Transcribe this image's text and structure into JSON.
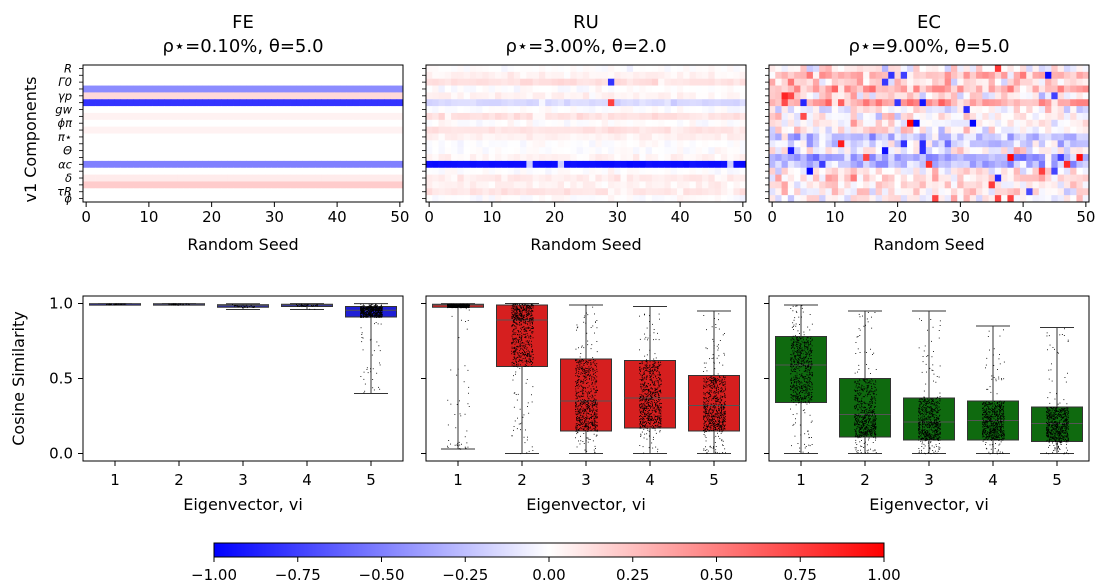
{
  "colors": {
    "fe_box": "#1f1fd6",
    "ru_box": "#d61f1f",
    "ec_box": "#0f6a0f",
    "cmap_neg": "#0000ff",
    "cmap_mid": "#ffffff",
    "cmap_pos": "#ff0000"
  },
  "chart_data": [
    {
      "type": "heatmap",
      "panel": "FE heatmap",
      "title": "FE",
      "subtitle": "ρ⋆=0.10%, θ=5.0",
      "xlabel": "Random Seed",
      "ylabel": "v1 Components",
      "x_ticks": [
        "0",
        "10",
        "20",
        "30",
        "40",
        "50"
      ],
      "xlim": [
        0,
        50
      ],
      "y_tick_labels": [
        "R",
        "Γ0",
        "γp",
        "gw",
        "ϕπ",
        "π⋆",
        "Θ",
        "αc",
        "δ",
        "τR",
        "ϕ"
      ],
      "n_rows": 20,
      "row_values": [
        0,
        0,
        0,
        -0.45,
        0.15,
        -0.8,
        0,
        0.05,
        0,
        0.05,
        0,
        0,
        0,
        0,
        -0.5,
        0,
        0.08,
        0.2,
        0,
        0
      ]
    },
    {
      "type": "heatmap",
      "panel": "RU heatmap",
      "title": "RU",
      "subtitle": "ρ⋆=3.00%, θ=2.0",
      "xlabel": "Random Seed",
      "x_ticks": [
        "0",
        "10",
        "20",
        "30",
        "40",
        "50"
      ],
      "xlim": [
        0,
        50
      ],
      "n_rows": 20,
      "row_values": [
        0,
        0.05,
        0.12,
        0,
        0.05,
        -0.15,
        0,
        0.12,
        0,
        0.1,
        0.05,
        0,
        0,
        0.04,
        -0.95,
        0,
        0.08,
        0.05,
        0.1,
        0
      ]
    },
    {
      "type": "heatmap",
      "panel": "EC heatmap",
      "title": "EC",
      "subtitle": "ρ⋆=9.00%, θ=5.0",
      "xlabel": "Random Seed",
      "x_ticks": [
        "0",
        "10",
        "20",
        "30",
        "40",
        "50"
      ],
      "xlim": [
        0,
        50
      ],
      "n_rows": 20,
      "row_values": [
        0.05,
        0.25,
        0.15,
        0.3,
        0.1,
        0.4,
        0,
        0.05,
        0,
        0.05,
        -0.25,
        -0.15,
        0.05,
        -0.35,
        -0.25,
        0.05,
        0.15,
        0.1,
        0.1,
        0
      ]
    },
    {
      "type": "box",
      "panel": "FE box",
      "xlabel": "Eigenvector, vi",
      "ylabel": "Cosine Similarity",
      "categories": [
        "1",
        "2",
        "3",
        "4",
        "5"
      ],
      "ylim": [
        -0.05,
        1.05
      ],
      "y_ticks": [
        "0.0",
        "0.5",
        "1.0"
      ],
      "boxes": [
        {
          "q1": 0.995,
          "median": 0.998,
          "q3": 0.999,
          "whislo": 0.993,
          "whishi": 1.0
        },
        {
          "q1": 0.994,
          "median": 0.997,
          "q3": 0.999,
          "whislo": 0.99,
          "whishi": 1.0
        },
        {
          "q1": 0.975,
          "median": 0.985,
          "q3": 0.992,
          "whislo": 0.96,
          "whishi": 0.998
        },
        {
          "q1": 0.98,
          "median": 0.99,
          "q3": 0.995,
          "whislo": 0.96,
          "whishi": 0.999
        },
        {
          "q1": 0.91,
          "median": 0.955,
          "q3": 0.98,
          "whislo": 0.4,
          "whishi": 0.999
        }
      ]
    },
    {
      "type": "box",
      "panel": "RU box",
      "xlabel": "Eigenvector, vi",
      "categories": [
        "1",
        "2",
        "3",
        "4",
        "5"
      ],
      "ylim": [
        -0.05,
        1.05
      ],
      "boxes": [
        {
          "q1": 0.975,
          "median": 0.99,
          "q3": 0.995,
          "whislo": 0.03,
          "whishi": 0.999
        },
        {
          "q1": 0.58,
          "median": 0.89,
          "q3": 0.99,
          "whislo": 0.0,
          "whishi": 1.0
        },
        {
          "q1": 0.15,
          "median": 0.35,
          "q3": 0.63,
          "whislo": 0.0,
          "whishi": 0.99
        },
        {
          "q1": 0.17,
          "median": 0.37,
          "q3": 0.62,
          "whislo": 0.0,
          "whishi": 0.98
        },
        {
          "q1": 0.15,
          "median": 0.32,
          "q3": 0.52,
          "whislo": 0.0,
          "whishi": 0.95
        }
      ]
    },
    {
      "type": "box",
      "panel": "EC box",
      "xlabel": "Eigenvector, vi",
      "categories": [
        "1",
        "2",
        "3",
        "4",
        "5"
      ],
      "ylim": [
        -0.05,
        1.05
      ],
      "boxes": [
        {
          "q1": 0.34,
          "median": 0.59,
          "q3": 0.78,
          "whislo": 0.0,
          "whishi": 0.99
        },
        {
          "q1": 0.11,
          "median": 0.26,
          "q3": 0.5,
          "whislo": 0.0,
          "whishi": 0.95
        },
        {
          "q1": 0.09,
          "median": 0.21,
          "q3": 0.37,
          "whislo": 0.0,
          "whishi": 0.95
        },
        {
          "q1": 0.09,
          "median": 0.22,
          "q3": 0.35,
          "whislo": 0.0,
          "whishi": 0.85
        },
        {
          "q1": 0.08,
          "median": 0.2,
          "q3": 0.31,
          "whislo": 0.0,
          "whishi": 0.84
        }
      ]
    },
    {
      "type": "colorbar",
      "panel": "colorbar",
      "vmin": -1.0,
      "vmax": 1.0,
      "ticks": [
        "−1.00",
        "−0.75",
        "−0.50",
        "−0.25",
        "0.00",
        "0.25",
        "0.50",
        "0.75",
        "1.00"
      ]
    }
  ]
}
